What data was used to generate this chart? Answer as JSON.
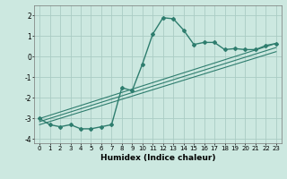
{
  "xlabel": "Humidex (Indice chaleur)",
  "background_color": "#cce8e0",
  "grid_color": "#aaccc4",
  "line_color": "#2e7d6e",
  "xlim": [
    -0.5,
    23.5
  ],
  "ylim": [
    -4.2,
    2.5
  ],
  "yticks": [
    -4,
    -3,
    -2,
    -1,
    0,
    1,
    2
  ],
  "xticks": [
    0,
    1,
    2,
    3,
    4,
    5,
    6,
    7,
    8,
    9,
    10,
    11,
    12,
    13,
    14,
    15,
    16,
    17,
    18,
    19,
    20,
    21,
    22,
    23
  ],
  "main_x": [
    0,
    1,
    2,
    3,
    4,
    5,
    6,
    7,
    8,
    9,
    10,
    11,
    12,
    13,
    14,
    15,
    16,
    17,
    18,
    19,
    20,
    21,
    22,
    23
  ],
  "main_y": [
    -3.0,
    -3.3,
    -3.4,
    -3.3,
    -3.5,
    -3.5,
    -3.4,
    -3.3,
    -1.5,
    -1.65,
    -0.35,
    1.1,
    1.9,
    1.85,
    1.3,
    0.6,
    0.7,
    0.7,
    0.35,
    0.4,
    0.35,
    0.35,
    0.55,
    0.65
  ],
  "line1_x": [
    0,
    23
  ],
  "line1_y": [
    -3.0,
    0.65
  ],
  "line2_x": [
    0,
    23
  ],
  "line2_y": [
    -3.15,
    0.45
  ],
  "line3_x": [
    0,
    23
  ],
  "line3_y": [
    -3.3,
    0.25
  ]
}
